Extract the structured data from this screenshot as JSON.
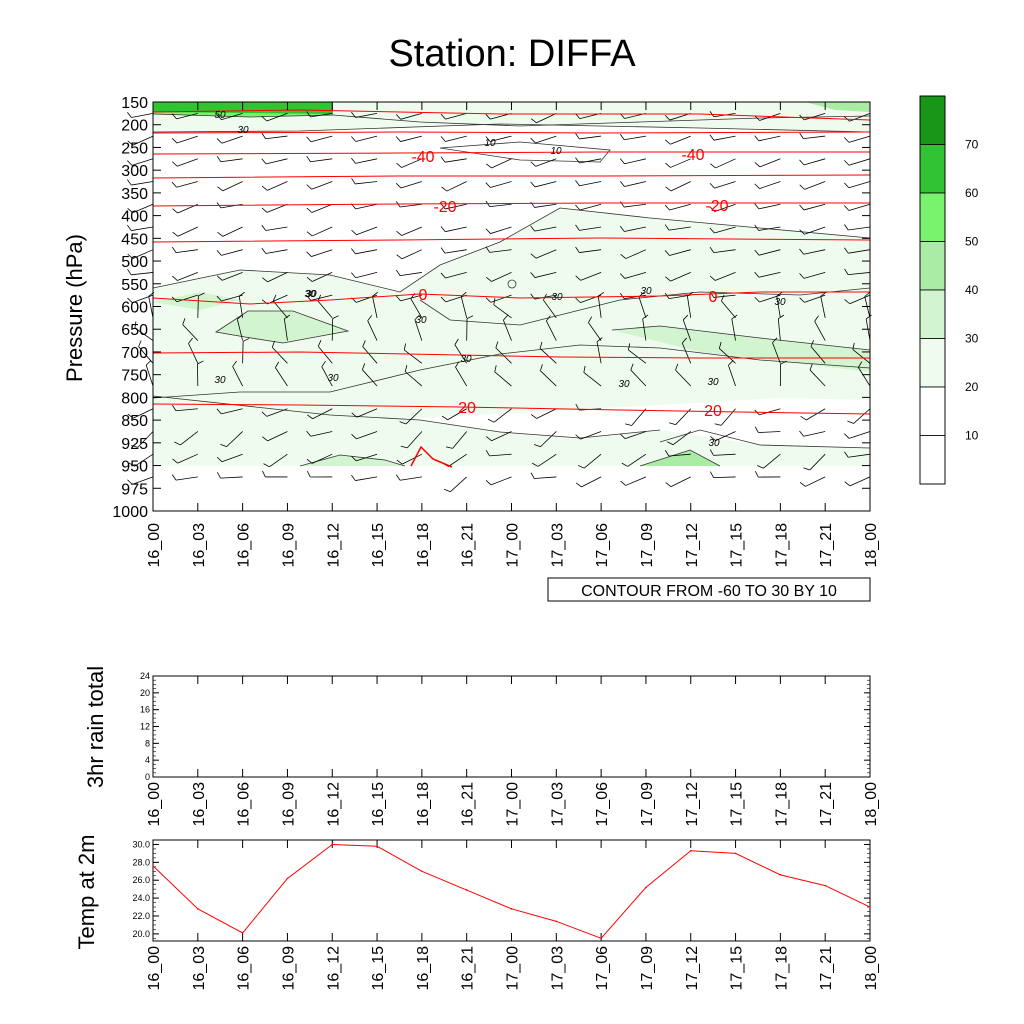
{
  "chart_data": [
    {
      "type": "heatmap",
      "title": "Station: DIFFA",
      "ylabel": "Pressure (hPa)",
      "xlabel": "",
      "x_ticks": [
        "16_00",
        "16_03",
        "16_06",
        "16_09",
        "16_12",
        "16_15",
        "16_18",
        "16_21",
        "17_00",
        "17_03",
        "17_06",
        "17_09",
        "17_12",
        "17_15",
        "17_18",
        "17_21",
        "18_00"
      ],
      "y_ticks": [
        "150",
        "200",
        "250",
        "300",
        "350",
        "400",
        "450",
        "500",
        "550",
        "600",
        "650",
        "700",
        "750",
        "800",
        "850",
        "925",
        "950",
        "975",
        "1000"
      ],
      "shading_variable": "relative humidity (%)",
      "colorbar_levels": [
        "10",
        "20",
        "30",
        "40",
        "50",
        "60",
        "70"
      ],
      "colorbar_colors": [
        "#ffffff",
        "#ffffff",
        "#f0fbef",
        "#d2f4cf",
        "#aaeba5",
        "#79f26e",
        "#32c332",
        "#189618"
      ],
      "contour_note": "CONTOUR FROM -60 TO 30 BY 10",
      "contour_line_color": "#ff0000",
      "temperature_contour_labels": [
        "-40",
        "-40",
        "-20",
        "-20",
        "0",
        "0",
        "20",
        "20"
      ],
      "humidity_contour_labels": [
        "50",
        "30",
        "10",
        "10",
        "30",
        "30",
        "30",
        "30",
        "30",
        "30",
        "30",
        "30",
        "30",
        "30",
        "30",
        "30"
      ],
      "wind_barbs": "barbs at every 3 h step and pressure level"
    },
    {
      "type": "line",
      "ylabel": "3hr rain total",
      "x": [
        "16_00",
        "16_03",
        "16_06",
        "16_09",
        "16_12",
        "16_15",
        "16_18",
        "16_21",
        "17_00",
        "17_03",
        "17_06",
        "17_09",
        "17_12",
        "17_15",
        "17_18",
        "17_21",
        "18_00"
      ],
      "ylim": [
        0,
        24
      ],
      "y_ticks": [
        "0",
        "4",
        "8",
        "12",
        "16",
        "20",
        "24"
      ],
      "series": [
        {
          "name": "rain",
          "values": [
            0,
            0,
            0,
            0,
            0,
            0,
            0,
            0,
            0,
            0,
            0,
            0,
            0,
            0,
            0,
            0,
            0
          ]
        }
      ]
    },
    {
      "type": "line",
      "ylabel": "Temp at 2m",
      "x": [
        "16_00",
        "16_03",
        "16_06",
        "16_09",
        "16_12",
        "16_15",
        "16_18",
        "16_21",
        "17_00",
        "17_03",
        "17_06",
        "17_09",
        "17_12",
        "17_15",
        "17_18",
        "17_21",
        "18_00"
      ],
      "ylim": [
        19.2,
        30.5
      ],
      "y_ticks": [
        "20.0",
        "22.0",
        "24.0",
        "26.0",
        "28.0",
        "30.0"
      ],
      "line_color": "#ff0000",
      "series": [
        {
          "name": "T2m",
          "values": [
            27.6,
            22.8,
            20.1,
            26.2,
            30.0,
            29.8,
            27.0,
            24.9,
            22.8,
            21.4,
            19.5,
            25.2,
            29.3,
            29.0,
            26.6,
            25.4,
            23.0
          ]
        }
      ]
    }
  ]
}
